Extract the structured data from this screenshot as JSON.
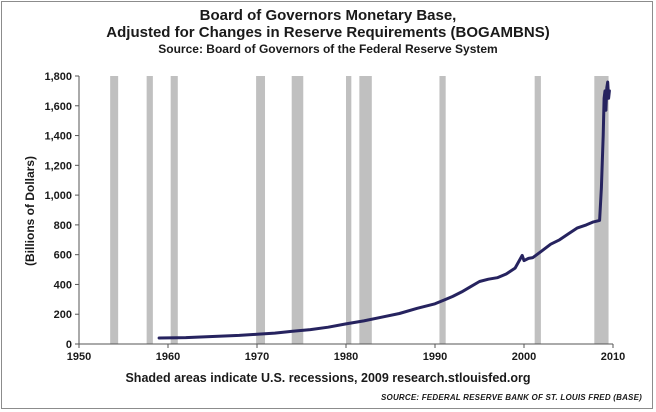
{
  "chart_data": {
    "type": "line",
    "title": "Board of Governors Monetary Base,",
    "title_line2": "Adjusted for Changes in Reserve Requirements (BOGAMBNS)",
    "subtitle": "Source: Board of Governors of the Federal Reserve System",
    "xlabel": "Shaded areas indicate U.S. recessions, 2009 research.stlouisfed.org",
    "ylabel": "(Billions of Dollars)",
    "source_note": "SOURCE: FEDERAL RESERVE BANK OF ST. LOUIS FRED (BASE)",
    "xlim": [
      1950,
      2010
    ],
    "ylim": [
      0,
      1800
    ],
    "x_ticks": [
      1950,
      1960,
      1970,
      1980,
      1990,
      2000,
      2010
    ],
    "y_ticks": [
      0,
      200,
      400,
      600,
      800,
      1000,
      1200,
      1400,
      1600,
      1800
    ],
    "y_tick_labels": [
      "0",
      "200",
      "400",
      "600",
      "800",
      "1,000",
      "1,200",
      "1,400",
      "1,600",
      "1,800"
    ],
    "x_tick_labels": [
      "1950",
      "1960",
      "1970",
      "1980",
      "1990",
      "2000",
      "2010"
    ],
    "grid": false,
    "line_color": "#26235f",
    "recession_color": "#c0c0c0",
    "recessions": [
      [
        1953.5,
        1954.4
      ],
      [
        1957.6,
        1958.3
      ],
      [
        1960.3,
        1961.1
      ],
      [
        1969.9,
        1970.9
      ],
      [
        1973.9,
        1975.2
      ],
      [
        1980.0,
        1980.6
      ],
      [
        1981.5,
        1982.9
      ],
      [
        1990.5,
        1991.2
      ],
      [
        2001.2,
        2001.9
      ],
      [
        2007.9,
        2009.5
      ]
    ],
    "series": [
      {
        "x": [
          1959.0,
          1960.0,
          1962.0,
          1964.0,
          1966.0,
          1968.0,
          1970.0,
          1972.0,
          1974.0,
          1976.0,
          1978.0,
          1980.0,
          1982.0,
          1984.0,
          1986.0,
          1988.0,
          1990.0,
          1991.0,
          1992.0,
          1993.0,
          1994.0,
          1995.0,
          1996.0,
          1997.0,
          1998.0,
          1999.0,
          1999.8,
          2000.0,
          2000.5,
          2001.0,
          2002.0,
          2003.0,
          2004.0,
          2005.0,
          2006.0,
          2007.0,
          2007.8,
          2008.5,
          2008.7,
          2008.9,
          2009.0,
          2009.1,
          2009.2,
          2009.3,
          2009.4,
          2009.5,
          2009.6
        ],
        "values": [
          40,
          41,
          43,
          48,
          53,
          58,
          65,
          73,
          85,
          97,
          113,
          135,
          155,
          180,
          205,
          240,
          270,
          295,
          320,
          350,
          385,
          420,
          435,
          445,
          470,
          510,
          595,
          560,
          575,
          580,
          625,
          670,
          700,
          740,
          780,
          800,
          820,
          830,
          1050,
          1400,
          1650,
          1700,
          1570,
          1720,
          1760,
          1650,
          1700
        ]
      }
    ]
  }
}
